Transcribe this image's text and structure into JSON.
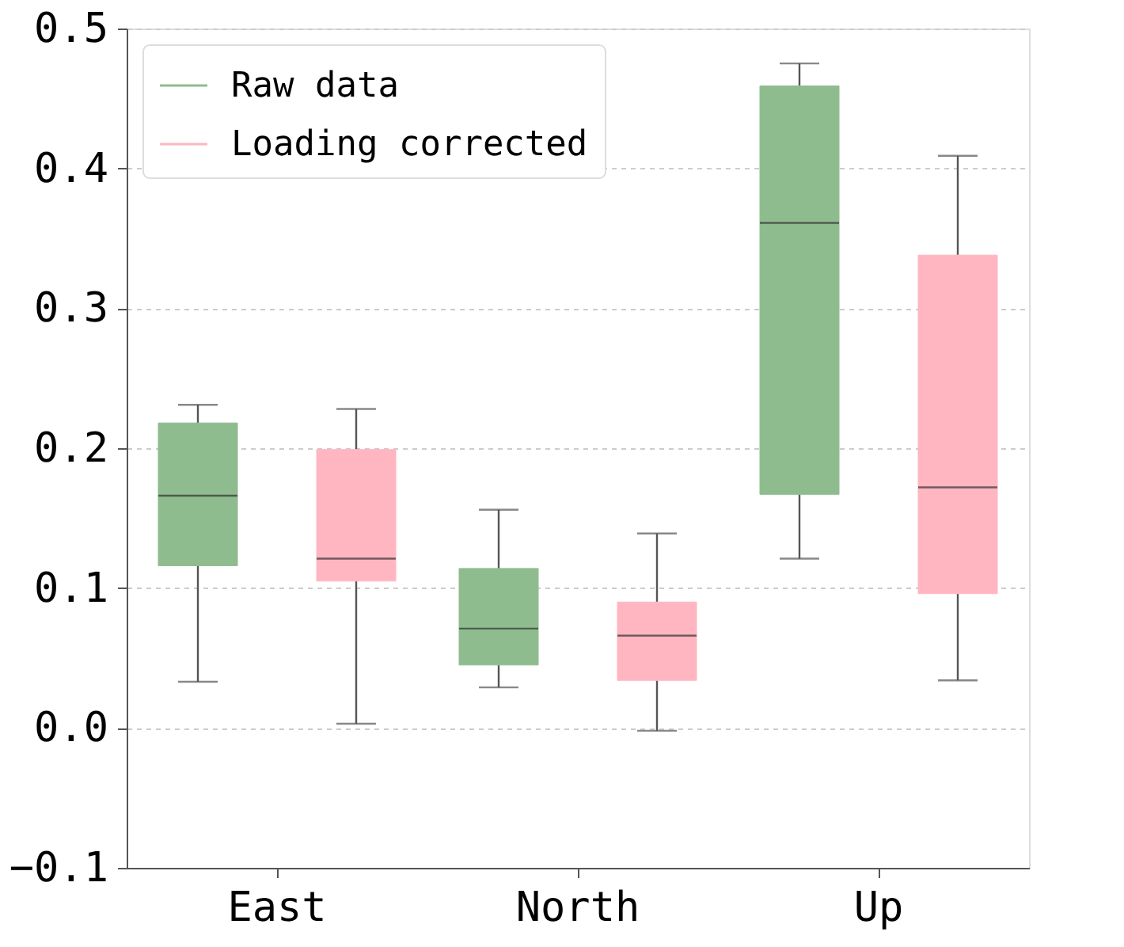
{
  "chart_data": {
    "type": "box",
    "categories": [
      "East",
      "North",
      "Up"
    ],
    "series": [
      {
        "name": "Raw data",
        "color": "#8fbc8f",
        "boxes": [
          {
            "low": 0.033,
            "q1": 0.116,
            "median": 0.166,
            "q3": 0.218,
            "high": 0.231
          },
          {
            "low": 0.029,
            "q1": 0.045,
            "median": 0.071,
            "q3": 0.114,
            "high": 0.156
          },
          {
            "low": 0.121,
            "q1": 0.167,
            "median": 0.361,
            "q3": 0.459,
            "high": 0.475
          }
        ]
      },
      {
        "name": "Loading corrected",
        "color": "#ffb6c1",
        "boxes": [
          {
            "low": 0.003,
            "q1": 0.105,
            "median": 0.121,
            "q3": 0.199,
            "high": 0.228
          },
          {
            "low": -0.002,
            "q1": 0.034,
            "median": 0.066,
            "q3": 0.09,
            "high": 0.139
          },
          {
            "low": 0.034,
            "q1": 0.096,
            "median": 0.172,
            "q3": 0.338,
            "high": 0.409
          }
        ]
      }
    ],
    "ylim": [
      -0.1,
      0.5
    ],
    "yticks": [
      -0.1,
      {
        "value": 0,
        "label": "0.0"
      },
      0.1,
      0.2,
      0.3,
      0.4,
      0.5
    ],
    "grid": "y",
    "legend": "top left"
  }
}
